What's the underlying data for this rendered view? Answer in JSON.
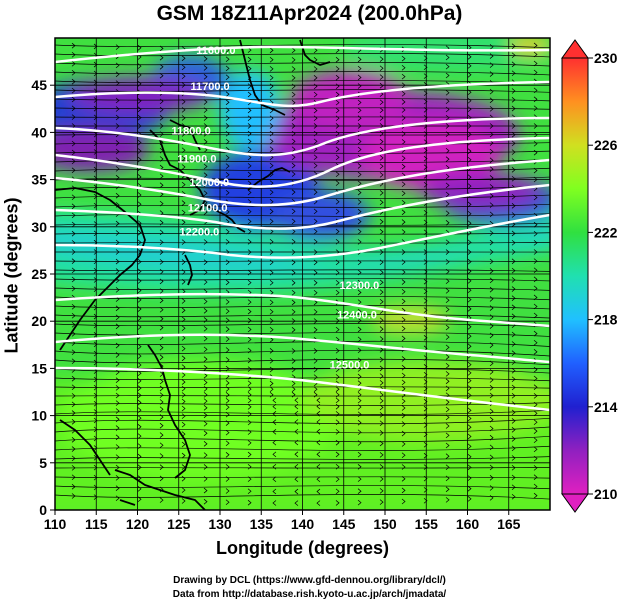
{
  "title": "GSM 18Z11Apr2024 (200.0hPa)",
  "xlabel": "Longitude (degrees)",
  "ylabel": "Latitude  (degrees)",
  "credits": [
    "Drawing by DCL (https://www.gfd-dennou.org/library/dcl/)",
    "Data from http://database.rish.kyoto-u.ac.jp/arch/jmadata/"
  ],
  "chart_data": {
    "type": "heatmap",
    "title": "GSM 18Z11Apr2024 (200.0hPa)",
    "xlabel": "Longitude (degrees)",
    "ylabel": "Latitude  (degrees)",
    "xlim": [
      110,
      170
    ],
    "ylim": [
      0,
      50
    ],
    "x_ticks": [
      110,
      115,
      120,
      125,
      130,
      135,
      140,
      145,
      150,
      155,
      160,
      165
    ],
    "y_ticks": [
      0,
      5,
      10,
      15,
      20,
      25,
      30,
      35,
      40,
      45
    ],
    "grid": true,
    "colorbar": {
      "ticks": [
        210,
        214,
        218,
        222,
        226,
        230
      ],
      "range": [
        210,
        230
      ],
      "placement": "right"
    },
    "contour_labels": [
      {
        "text": "11600.0",
        "lon": 129.5,
        "lat": 48.3
      },
      {
        "text": "11700.0",
        "lon": 128.8,
        "lat": 44.5
      },
      {
        "text": "11800.0",
        "lon": 126.5,
        "lat": 39.8
      },
      {
        "text": "11900.0",
        "lon": 127.2,
        "lat": 36.8
      },
      {
        "text": "12000.0",
        "lon": 128.7,
        "lat": 34.3
      },
      {
        "text": "12100.0",
        "lon": 128.5,
        "lat": 31.6
      },
      {
        "text": "12200.0",
        "lon": 127.5,
        "lat": 29.1
      },
      {
        "text": "12300.0",
        "lon": 146.9,
        "lat": 23.4
      },
      {
        "text": "12400.0",
        "lon": 146.6,
        "lat": 20.3
      },
      {
        "text": "12500.0",
        "lon": 145.7,
        "lat": 15.0
      }
    ]
  }
}
